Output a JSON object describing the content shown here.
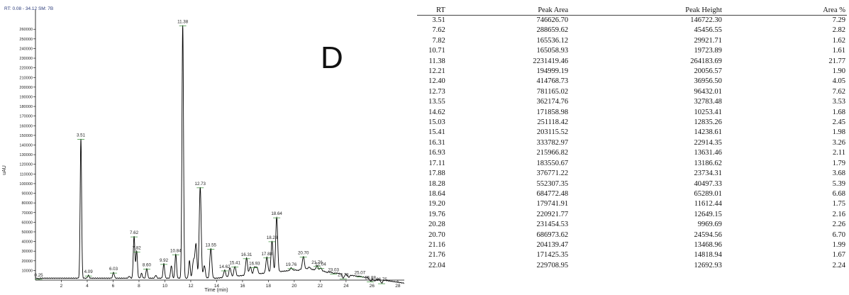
{
  "chart_range_label": "RT: 0.08 - 34.12   SM: 7B",
  "panel_letter": "D",
  "colors": {
    "trace": "#000000",
    "axis": "#000000",
    "peak_label": "#222222",
    "baseline_marker": "#2e8b2e",
    "header_text": "#2b3b7a"
  },
  "chart_data": [
    {
      "type": "line",
      "title": "",
      "xlabel": "Time (min)",
      "ylabel": "uAU",
      "xlim": [
        0,
        28.5
      ],
      "ylim": [
        0,
        280000
      ],
      "x_ticks": [
        "2",
        "4",
        "6",
        "8",
        "10",
        "12",
        "14",
        "16",
        "18",
        "20",
        "22",
        "24",
        "26",
        "28"
      ],
      "y_ticks": [
        "10000",
        "20000",
        "30000",
        "40000",
        "50000",
        "60000",
        "70000",
        "80000",
        "90000",
        "100000",
        "110000",
        "120000",
        "130000",
        "140000",
        "150000",
        "160000",
        "170000",
        "180000",
        "190000",
        "200000",
        "210000",
        "220000",
        "230000",
        "240000",
        "250000",
        "260000"
      ],
      "peaks": [
        {
          "label": "0.25",
          "x": 0.25,
          "y": 1500
        },
        {
          "label": "3.51",
          "x": 3.51,
          "y": 146700
        },
        {
          "label": "4.09",
          "x": 4.09,
          "y": 5000
        },
        {
          "label": "6.03",
          "x": 6.03,
          "y": 8000
        },
        {
          "label": "7.62",
          "x": 7.62,
          "y": 45500
        },
        {
          "label": "7.82",
          "x": 7.82,
          "y": 29900
        },
        {
          "label": "8.60",
          "x": 8.6,
          "y": 12000
        },
        {
          "label": "9.92",
          "x": 9.92,
          "y": 17000
        },
        {
          "label": "10.84",
          "x": 10.84,
          "y": 27000
        },
        {
          "label": "11.38",
          "x": 11.38,
          "y": 264200
        },
        {
          "label": "12.73",
          "x": 12.73,
          "y": 96400
        },
        {
          "label": "13.55",
          "x": 13.55,
          "y": 32800
        },
        {
          "label": "14.62",
          "x": 14.62,
          "y": 10300
        },
        {
          "label": "15.41",
          "x": 15.41,
          "y": 14200
        },
        {
          "label": "16.31",
          "x": 16.31,
          "y": 22900
        },
        {
          "label": "16.93",
          "x": 16.93,
          "y": 13600
        },
        {
          "label": "17.88",
          "x": 17.88,
          "y": 23700
        },
        {
          "label": "18.28",
          "x": 18.28,
          "y": 40500
        },
        {
          "label": "18.64",
          "x": 18.64,
          "y": 65300
        },
        {
          "label": "19.76",
          "x": 19.76,
          "y": 12600
        },
        {
          "label": "20.70",
          "x": 20.7,
          "y": 24600
        },
        {
          "label": "21.76",
          "x": 21.76,
          "y": 14800
        },
        {
          "label": "22.04",
          "x": 22.04,
          "y": 12700
        },
        {
          "label": "23.03",
          "x": 23.03,
          "y": 7000
        },
        {
          "label": "23.78",
          "x": 23.78,
          "y": 2000
        },
        {
          "label": "25.07",
          "x": 25.07,
          "y": 4000
        },
        {
          "label": "25.88",
          "x": 25.88,
          "y": -1000
        },
        {
          "label": "26.75",
          "x": 26.75,
          "y": -3000
        }
      ],
      "minor_peaks": [
        {
          "x": 7.25,
          "y": 4000
        },
        {
          "x": 8.2,
          "y": 7000
        },
        {
          "x": 9.3,
          "y": 5000
        },
        {
          "x": 10.5,
          "y": 15000
        },
        {
          "x": 11.9,
          "y": 20000
        },
        {
          "x": 12.21,
          "y": 20000
        },
        {
          "x": 12.4,
          "y": 37000
        },
        {
          "x": 13.05,
          "y": 15000
        },
        {
          "x": 15.03,
          "y": 12800
        },
        {
          "x": 16.6,
          "y": 14000
        },
        {
          "x": 17.11,
          "y": 13200
        },
        {
          "x": 20.28,
          "y": 10000
        },
        {
          "x": 21.16,
          "y": 13500
        },
        {
          "x": 22.5,
          "y": 8000
        },
        {
          "x": 24.2,
          "y": 3000
        },
        {
          "x": 26.2,
          "y": -1000
        }
      ]
    },
    {
      "type": "table",
      "columns": [
        "RT",
        "Peak Area",
        "Peak Height",
        "Area %"
      ],
      "rows": [
        [
          "3.51",
          "746626.70",
          "146722.30",
          "7.29"
        ],
        [
          "7.62",
          "288659.62",
          "45456.55",
          "2.82"
        ],
        [
          "7.82",
          "165536.12",
          "29921.71",
          "1.62"
        ],
        [
          "10.71",
          "165058.93",
          "19723.89",
          "1.61"
        ],
        [
          "11.38",
          "2231419.46",
          "264183.69",
          "21.77"
        ],
        [
          "12.21",
          "194999.19",
          "20056.57",
          "1.90"
        ],
        [
          "12.40",
          "414768.73",
          "36956.50",
          "4.05"
        ],
        [
          "12.73",
          "781165.02",
          "96432.01",
          "7.62"
        ],
        [
          "13.55",
          "362174.76",
          "32783.48",
          "3.53"
        ],
        [
          "14.62",
          "171858.98",
          "10253.41",
          "1.68"
        ],
        [
          "15.03",
          "251118.42",
          "12835.26",
          "2.45"
        ],
        [
          "15.41",
          "203115.52",
          "14238.61",
          "1.98"
        ],
        [
          "16.31",
          "333782.97",
          "22914.35",
          "3.26"
        ],
        [
          "16.93",
          "215966.82",
          "13631.46",
          "2.11"
        ],
        [
          "17.11",
          "183550.67",
          "13186.62",
          "1.79"
        ],
        [
          "17.88",
          "376771.22",
          "23734.31",
          "3.68"
        ],
        [
          "18.28",
          "552307.35",
          "40497.33",
          "5.39"
        ],
        [
          "18.64",
          "684772.48",
          "65289.01",
          "6.68"
        ],
        [
          "19.20",
          "179741.91",
          "11612.44",
          "1.75"
        ],
        [
          "19.76",
          "220921.77",
          "12649.15",
          "2.16"
        ],
        [
          "20.28",
          "231454.53",
          "9969.69",
          "2.26"
        ],
        [
          "20.70",
          "686973.62",
          "24594.56",
          "6.70"
        ],
        [
          "21.16",
          "204139.47",
          "13468.96",
          "1.99"
        ],
        [
          "21.76",
          "171425.35",
          "14818.94",
          "1.67"
        ],
        [
          "22.04",
          "229708.95",
          "12692.93",
          "2.24"
        ]
      ]
    }
  ]
}
